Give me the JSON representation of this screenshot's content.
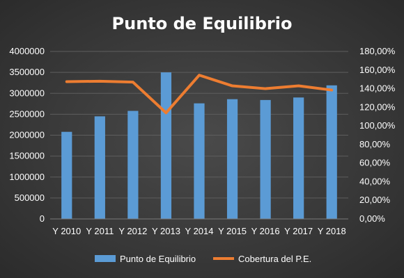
{
  "chart_data": {
    "type": "bar",
    "title": "Punto de Equilibrio",
    "categories": [
      "Y 2010",
      "Y 2011",
      "Y 2012",
      "Y 2013",
      "Y 2014",
      "Y 2015",
      "Y 2016",
      "Y 2017",
      "Y 2018"
    ],
    "series": [
      {
        "name": "Punto de Equilibrio",
        "type": "bar",
        "axis": "left",
        "color": "#5b9bd5",
        "values": [
          2080000,
          2450000,
          2580000,
          3500000,
          2760000,
          2860000,
          2840000,
          2900000,
          3190000
        ]
      },
      {
        "name": "Cobertura del P.E.",
        "type": "line",
        "axis": "right",
        "color": "#ed7d31",
        "values": [
          147.5,
          148,
          147,
          114,
          154.5,
          143,
          140,
          143,
          138.5
        ]
      }
    ],
    "y_left": {
      "ylim": [
        0,
        4000000
      ],
      "ticks": [
        "0",
        "500000",
        "1000000",
        "1500000",
        "2000000",
        "2500000",
        "3000000",
        "3500000",
        "4000000"
      ]
    },
    "y_right": {
      "ylim": [
        0,
        180
      ],
      "ticks": [
        "0,00%",
        "20,00%",
        "40,00%",
        "60,00%",
        "80,00%",
        "100,00%",
        "120,00%",
        "140,00%",
        "160,00%",
        "180,00%"
      ]
    },
    "grid": true,
    "legend_position": "bottom"
  }
}
